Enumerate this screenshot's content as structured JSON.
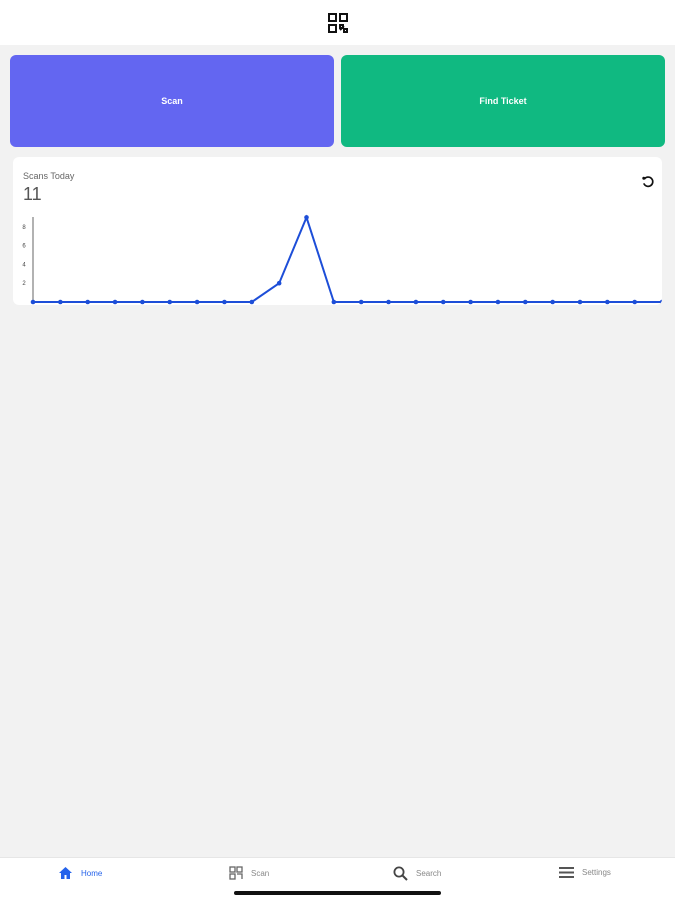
{
  "header": {
    "icon": "qr-code-icon"
  },
  "actions": {
    "scan_label": "Scan",
    "scan_color": "#6366f1",
    "find_label": "Find Ticket",
    "find_color": "#10b981"
  },
  "card": {
    "title": "Scans Today",
    "value": "11",
    "refresh_icon": "refresh-icon"
  },
  "chart_data": {
    "type": "line",
    "x": [
      0,
      1,
      2,
      3,
      4,
      5,
      6,
      7,
      8,
      9,
      10,
      11,
      12,
      13,
      14,
      15,
      16,
      17,
      18,
      19,
      20,
      21,
      22,
      23
    ],
    "values": [
      0,
      0,
      0,
      0,
      0,
      0,
      0,
      0,
      0,
      2,
      9,
      0,
      0,
      0,
      0,
      0,
      0,
      0,
      0,
      0,
      0,
      0,
      0,
      0
    ],
    "yticks": [
      "2",
      "4",
      "6",
      "8"
    ],
    "ylim": [
      0,
      9
    ],
    "color": "#1d4ed8",
    "grid": false
  },
  "tabs": [
    {
      "label": "Home",
      "icon": "home-icon",
      "active": true
    },
    {
      "label": "Scan",
      "icon": "qr-code-icon"
    },
    {
      "label": "Search",
      "icon": "search-icon"
    },
    {
      "label": "Settings",
      "icon": "menu-icon"
    }
  ]
}
